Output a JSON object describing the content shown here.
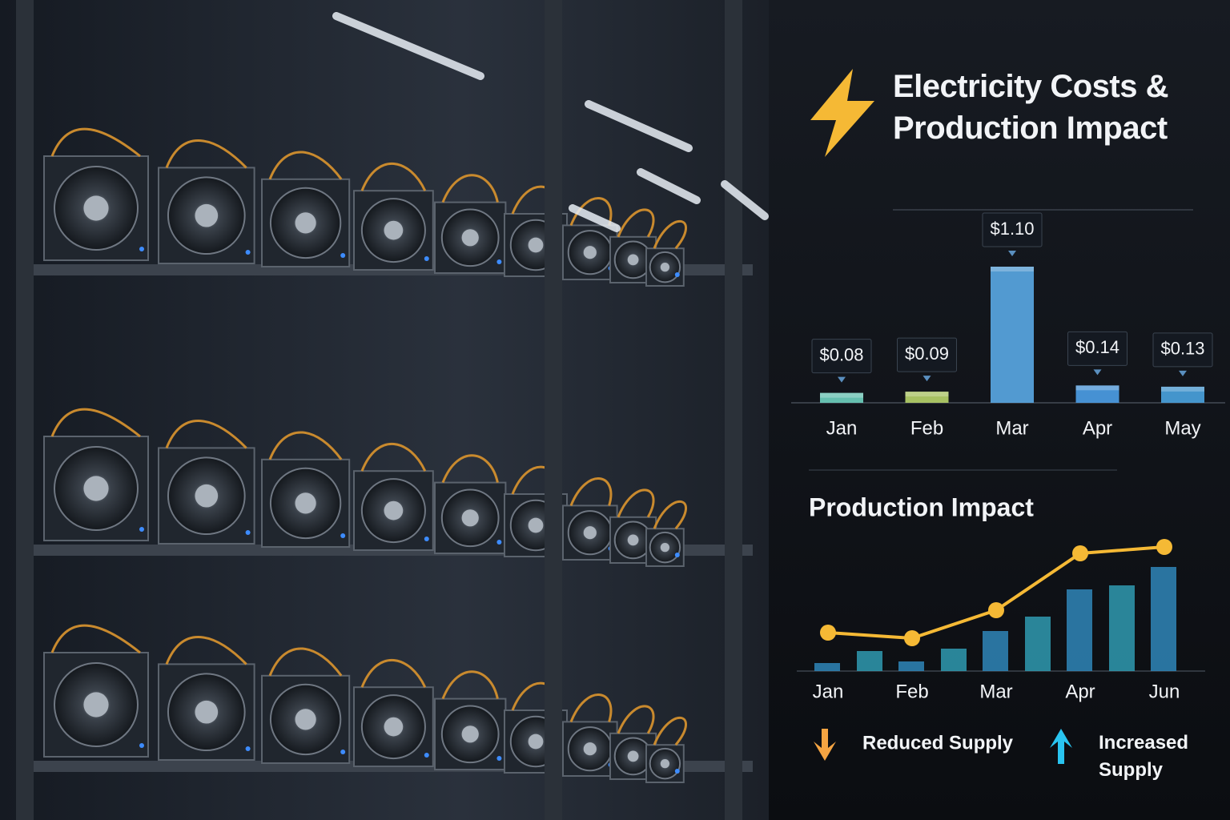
{
  "header": {
    "title": "Electricity Costs & Production Impact"
  },
  "chart_data": [
    {
      "type": "bar",
      "categories": [
        "Jan",
        "Feb",
        "Mar",
        "Apr",
        "May"
      ],
      "values": [
        0.08,
        0.09,
        1.1,
        0.14,
        0.13
      ],
      "value_labels": [
        "$0.08",
        "$0.09",
        "$1.10",
        "$0.14",
        "$0.13"
      ],
      "colors": [
        "#6fd1c0",
        "#b8d46a",
        "#5aa9e6",
        "#4c9ee8",
        "#4aa3e0"
      ]
    },
    {
      "type": "combo",
      "title": "Production Impact",
      "categories": [
        "Jan",
        "Feb",
        "Mar",
        "Apr",
        "Jun"
      ],
      "series": [
        {
          "type": "bar",
          "color": "#2f86b8",
          "values": [
            10,
            12,
            50,
            102,
            130
          ]
        },
        {
          "type": "bar",
          "color": "#2f9ab0",
          "values": [
            25,
            28,
            68,
            107,
            null
          ]
        },
        {
          "type": "line",
          "color": "#f5b935",
          "values": [
            48,
            41,
            76,
            147,
            155
          ]
        }
      ],
      "legend": [
        {
          "label": "Reduced Supply",
          "color": "#f5a442",
          "direction": "down"
        },
        {
          "label": "Increased Supply",
          "color": "#29c4f0",
          "direction": "up"
        }
      ]
    }
  ]
}
